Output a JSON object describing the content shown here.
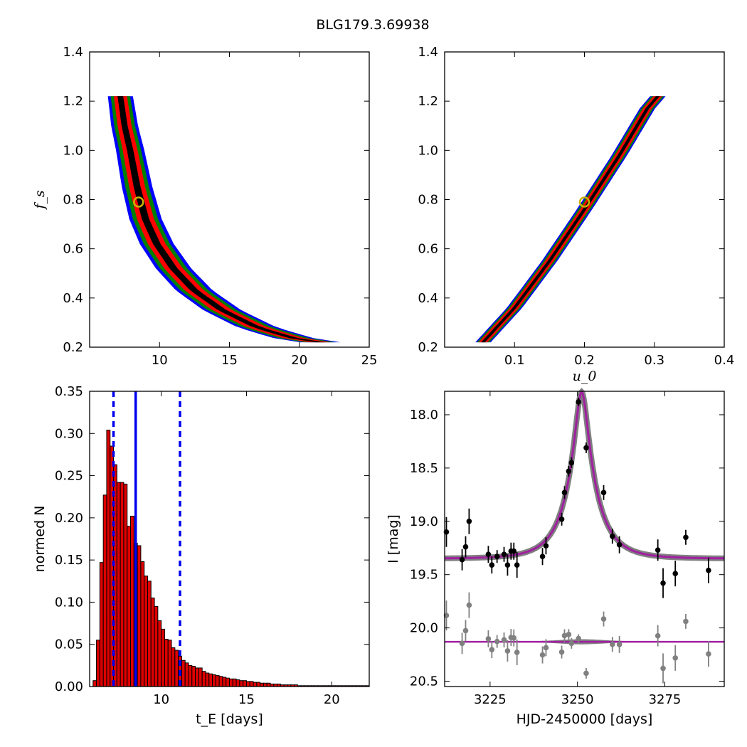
{
  "title": "BLG179.3.69938",
  "colors": {
    "sigma1": "#000000",
    "sigma2": "#ff0000",
    "sigma3": "#008000",
    "sigma4": "#0000ff",
    "marker": "#c8b400",
    "hist_bar": "#dd0000",
    "hist_line": "#0000ee",
    "data_main": "#000000",
    "data_resid": "#808080",
    "model": "#a020a0",
    "model_band": "#808080"
  },
  "chart_data": [
    {
      "id": "fs_vs_tE",
      "type": "heatmap",
      "xlabel": "",
      "ylabel": "f_s",
      "xlim": [
        5,
        25
      ],
      "ylim": [
        0.2,
        1.4
      ],
      "xticks": [
        10,
        15,
        20,
        25
      ],
      "yticks": [
        0.2,
        0.4,
        0.6,
        0.8,
        1.0,
        1.2,
        1.4
      ],
      "levels": [
        "sigma1",
        "sigma2",
        "sigma3",
        "sigma4"
      ],
      "ridge": [
        [
          7.2,
          1.22
        ],
        [
          7.5,
          1.1
        ],
        [
          7.9,
          1.0
        ],
        [
          8.4,
          0.85
        ],
        [
          9.0,
          0.72
        ],
        [
          9.8,
          0.62
        ],
        [
          11.0,
          0.52
        ],
        [
          12.5,
          0.43
        ],
        [
          14.5,
          0.35
        ],
        [
          17.0,
          0.28
        ],
        [
          20.0,
          0.23
        ],
        [
          21.5,
          0.22
        ]
      ],
      "level_widths": [
        0.018,
        0.042,
        0.062,
        0.08
      ],
      "best_fit": {
        "x": 8.5,
        "y": 0.79
      }
    },
    {
      "id": "fs_vs_u0",
      "type": "heatmap",
      "xlabel": "u_0",
      "ylabel": "",
      "xlim": [
        0.0,
        0.4
      ],
      "ylim": [
        0.2,
        1.4
      ],
      "xticks": [
        0.1,
        0.2,
        0.3,
        0.4
      ],
      "yticks": [
        0.2,
        0.4,
        0.6,
        0.8,
        1.0,
        1.2,
        1.4
      ],
      "levels": [
        "sigma1",
        "sigma2",
        "sigma3",
        "sigma4"
      ],
      "ridge": [
        [
          0.055,
          0.22
        ],
        [
          0.1,
          0.36
        ],
        [
          0.15,
          0.55
        ],
        [
          0.2,
          0.76
        ],
        [
          0.25,
          0.98
        ],
        [
          0.29,
          1.17
        ],
        [
          0.305,
          1.22
        ]
      ],
      "level_widths": [
        0.012,
        0.028,
        0.04,
        0.05
      ],
      "best_fit": {
        "x": 0.2,
        "y": 0.79
      }
    },
    {
      "id": "tE_histogram",
      "type": "bar",
      "xlabel": "t_E  [days]",
      "ylabel": "normed N",
      "xlim": [
        5.8,
        22.2
      ],
      "ylim": [
        0,
        0.35
      ],
      "xticks": [
        10,
        15,
        20
      ],
      "yticks": [
        0.0,
        0.05,
        0.1,
        0.15,
        0.2,
        0.25,
        0.3,
        0.35
      ],
      "bin_start": 6.0,
      "bin_width": 0.2,
      "values": [
        0.007,
        0.055,
        0.147,
        0.227,
        0.304,
        0.285,
        0.263,
        0.242,
        0.242,
        0.24,
        0.19,
        0.202,
        0.17,
        0.167,
        0.148,
        0.131,
        0.125,
        0.105,
        0.095,
        0.078,
        0.068,
        0.056,
        0.055,
        0.046,
        0.043,
        0.036,
        0.031,
        0.028,
        0.025,
        0.024,
        0.022,
        0.022,
        0.018,
        0.016,
        0.015,
        0.014,
        0.013,
        0.012,
        0.011,
        0.01,
        0.009,
        0.009,
        0.008,
        0.007,
        0.007,
        0.006,
        0.006,
        0.005,
        0.005,
        0.004,
        0.004,
        0.004,
        0.003,
        0.003,
        0.003,
        0.002,
        0.002,
        0.002,
        0.002,
        0.002,
        0.001,
        0.001,
        0.001,
        0.001,
        0.001,
        0.001,
        0.001,
        0.001,
        0.001,
        0.001,
        0.001,
        0.001,
        0.001,
        0.001,
        0.001,
        0.001,
        0.001,
        0.001,
        0.001,
        0.001,
        0.001
      ],
      "median": 8.5,
      "lower": 7.2,
      "upper": 11.1
    },
    {
      "id": "light_curve",
      "type": "scatter",
      "xlabel": "HJD-2450000 [days]",
      "ylabel": "I [mag]",
      "xlim": [
        3212,
        3292
      ],
      "ylim": [
        20.55,
        17.78
      ],
      "xticks": [
        3225,
        3250,
        3275
      ],
      "yticks": [
        18.0,
        18.5,
        19.0,
        19.5,
        20.0,
        20.5
      ],
      "baseline": 19.35,
      "residual_offset": 20.13,
      "model": {
        "t0": 3251.2,
        "tE": 8.5,
        "u0": 0.2,
        "fs": 0.79
      },
      "points": [
        {
          "x": 3212.5,
          "y": 19.1,
          "err": 0.14
        },
        {
          "x": 3217.0,
          "y": 19.36,
          "err": 0.1
        },
        {
          "x": 3218.0,
          "y": 19.24,
          "err": 0.1
        },
        {
          "x": 3219.0,
          "y": 19.0,
          "err": 0.12
        },
        {
          "x": 3224.5,
          "y": 19.31,
          "err": 0.08
        },
        {
          "x": 3225.5,
          "y": 19.41,
          "err": 0.08
        },
        {
          "x": 3227.0,
          "y": 19.33,
          "err": 0.06
        },
        {
          "x": 3229.0,
          "y": 19.31,
          "err": 0.07
        },
        {
          "x": 3230.0,
          "y": 19.41,
          "err": 0.1
        },
        {
          "x": 3231.0,
          "y": 19.28,
          "err": 0.08
        },
        {
          "x": 3231.8,
          "y": 19.28,
          "err": 0.08
        },
        {
          "x": 3232.7,
          "y": 19.41,
          "err": 0.12
        },
        {
          "x": 3240.0,
          "y": 19.33,
          "err": 0.08
        },
        {
          "x": 3241.0,
          "y": 19.23,
          "err": 0.08
        },
        {
          "x": 3245.5,
          "y": 18.98,
          "err": 0.06
        },
        {
          "x": 3246.3,
          "y": 18.73,
          "err": 0.06
        },
        {
          "x": 3247.5,
          "y": 18.53,
          "err": 0.05
        },
        {
          "x": 3248.3,
          "y": 18.45,
          "err": 0.05
        },
        {
          "x": 3250.3,
          "y": 17.88,
          "err": 0.04
        },
        {
          "x": 3252.5,
          "y": 18.31,
          "err": 0.05
        },
        {
          "x": 3257.5,
          "y": 18.73,
          "err": 0.07
        },
        {
          "x": 3260.0,
          "y": 19.14,
          "err": 0.07
        },
        {
          "x": 3262.0,
          "y": 19.22,
          "err": 0.08
        },
        {
          "x": 3273.0,
          "y": 19.27,
          "err": 0.1
        },
        {
          "x": 3274.5,
          "y": 19.58,
          "err": 0.14
        },
        {
          "x": 3278.0,
          "y": 19.49,
          "err": 0.12
        },
        {
          "x": 3281.0,
          "y": 19.15,
          "err": 0.07
        },
        {
          "x": 3287.5,
          "y": 19.46,
          "err": 0.12
        }
      ]
    }
  ]
}
